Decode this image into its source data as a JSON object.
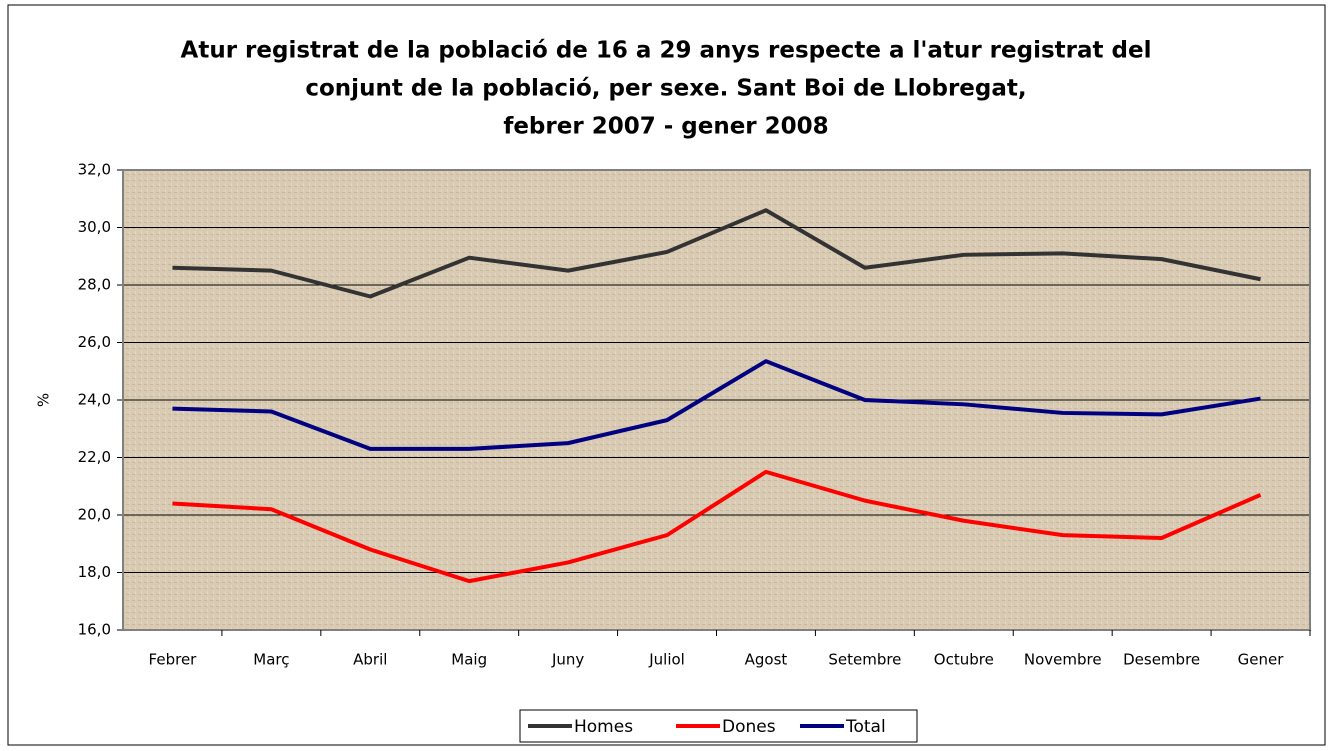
{
  "chart_data": {
    "type": "line",
    "title": [
      "Atur registrat de la població de 16 a 29 anys respecte a l'atur registrat del",
      "conjunt de la població, per sexe. Sant Boi de Llobregat,",
      "febrer 2007 - gener 2008"
    ],
    "ylabel": "%",
    "categories": [
      "Febrer",
      "Març",
      "Abril",
      "Maig",
      "Juny",
      "Juliol",
      "Agost",
      "Setembre",
      "Octubre",
      "Novembre",
      "Desembre",
      "Gener"
    ],
    "series": [
      {
        "name": "Homes",
        "color": "#333333",
        "values": [
          28.6,
          28.5,
          27.6,
          28.95,
          28.5,
          29.15,
          30.6,
          28.6,
          29.05,
          29.1,
          28.9,
          28.2
        ]
      },
      {
        "name": "Dones",
        "color": "#ff0000",
        "values": [
          20.4,
          20.2,
          18.8,
          17.7,
          18.35,
          19.3,
          21.5,
          20.5,
          19.8,
          19.3,
          19.2,
          20.7
        ]
      },
      {
        "name": "Total",
        "color": "#000080",
        "values": [
          23.7,
          23.6,
          22.3,
          22.3,
          22.5,
          23.3,
          25.35,
          24.0,
          23.85,
          23.55,
          23.5,
          24.05
        ]
      }
    ],
    "ylim": [
      16,
      32
    ],
    "yticks": [
      {
        "value": 16,
        "label": "16,0"
      },
      {
        "value": 18,
        "label": "18,0"
      },
      {
        "value": 20,
        "label": "20,0"
      },
      {
        "value": 22,
        "label": "22,0"
      },
      {
        "value": 24,
        "label": "24,0"
      },
      {
        "value": 26,
        "label": "26,0"
      },
      {
        "value": 28,
        "label": "28,0"
      },
      {
        "value": 30,
        "label": "30,0"
      },
      {
        "value": 32,
        "label": "32,0"
      }
    ],
    "grid": true,
    "legend": "bottom"
  }
}
